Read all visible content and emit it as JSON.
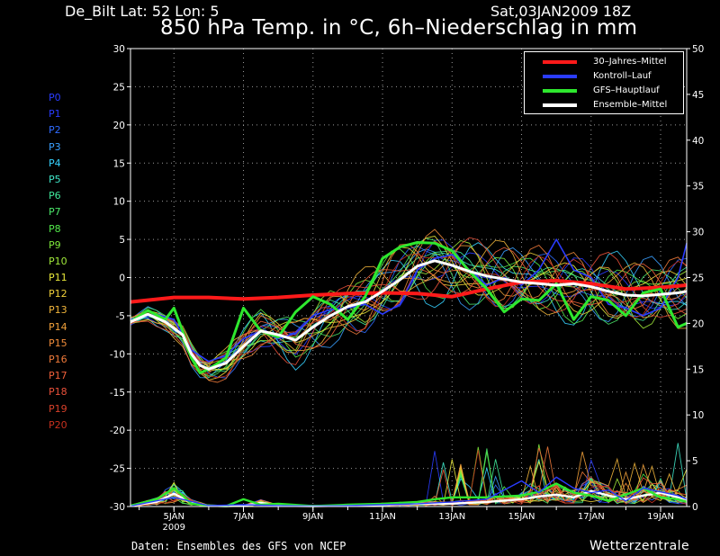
{
  "header": {
    "location": "De_Bilt   Lat: 52 Lon: 5",
    "run": "Sat,03JAN2009 18Z",
    "title": "850 hPa Temp. in °C, 6h–Niederschlag in mm"
  },
  "footer": {
    "source": "Daten: Ensembles des GFS von NCEP",
    "brand": "Wetterzentrale"
  },
  "members": [
    {
      "label": "P0",
      "color": "#2a3cff"
    },
    {
      "label": "P1",
      "color": "#2a3cff"
    },
    {
      "label": "P2",
      "color": "#2f6bff"
    },
    {
      "label": "P3",
      "color": "#3aa0ff"
    },
    {
      "label": "P4",
      "color": "#36d2ff"
    },
    {
      "label": "P5",
      "color": "#3fe6c8"
    },
    {
      "label": "P6",
      "color": "#3fe89a"
    },
    {
      "label": "P7",
      "color": "#4be86a"
    },
    {
      "label": "P8",
      "color": "#52e84a"
    },
    {
      "label": "P9",
      "color": "#7de83a"
    },
    {
      "label": "P10",
      "color": "#a0e83a"
    },
    {
      "label": "P11",
      "color": "#e8e83a"
    },
    {
      "label": "P12",
      "color": "#f0d03a"
    },
    {
      "label": "P13",
      "color": "#f0b43a"
    },
    {
      "label": "P14",
      "color": "#f0a03a"
    },
    {
      "label": "P15",
      "color": "#f08c3a"
    },
    {
      "label": "P16",
      "color": "#f07a3a"
    },
    {
      "label": "P17",
      "color": "#f0603a"
    },
    {
      "label": "P18",
      "color": "#e8503a"
    },
    {
      "label": "P19",
      "color": "#d8402a"
    },
    {
      "label": "P20",
      "color": "#c8301e"
    }
  ],
  "chart_data": {
    "type": "line",
    "x_unit": "day of January 2009",
    "xlim": [
      3.75,
      19.75
    ],
    "xticks": [
      {
        "x": 5,
        "label": "5JAN",
        "sub": "2009"
      },
      {
        "x": 7,
        "label": "7JAN",
        "sub": ""
      },
      {
        "x": 9,
        "label": "9JAN",
        "sub": ""
      },
      {
        "x": 11,
        "label": "11JAN",
        "sub": ""
      },
      {
        "x": 13,
        "label": "13JAN",
        "sub": ""
      },
      {
        "x": 15,
        "label": "15JAN",
        "sub": ""
      },
      {
        "x": 17,
        "label": "17JAN",
        "sub": ""
      },
      {
        "x": 19,
        "label": "19JAN",
        "sub": ""
      }
    ],
    "ylim_left": [
      -30,
      30
    ],
    "yticks_left": [
      -30,
      -25,
      -20,
      -15,
      -10,
      -5,
      0,
      5,
      10,
      15,
      20,
      25,
      30
    ],
    "ylim_right": [
      0,
      50
    ],
    "yticks_right": [
      0,
      5,
      10,
      15,
      20,
      25,
      30,
      35,
      40,
      45,
      50
    ],
    "grid": true,
    "legend": {
      "position": "top-right",
      "items": [
        {
          "name": "30–Jahres–Mittel",
          "color": "#ff1a1a"
        },
        {
          "name": "Kontroll–Lauf",
          "color": "#2a3cff"
        },
        {
          "name": "GFS–Hauptlauf",
          "color": "#2ee82e"
        },
        {
          "name": "Ensemble–Mittel",
          "color": "#ffffff"
        }
      ]
    },
    "temperature_series": [
      {
        "name": "30–Jahres–Mittel",
        "color": "#ff1a1a",
        "width": 4,
        "x": [
          3.75,
          5,
          6,
          7,
          8,
          9,
          10,
          11,
          12,
          13,
          14,
          15,
          16,
          17,
          18,
          19,
          19.75
        ],
        "y": [
          -3.2,
          -2.6,
          -2.6,
          -2.8,
          -2.6,
          -2.3,
          -2.1,
          -2.0,
          -2.1,
          -2.5,
          -1.5,
          -0.6,
          -0.4,
          -0.8,
          -1.5,
          -1.3,
          -1.0
        ]
      },
      {
        "name": "Ensemble–Mittel",
        "color": "#ffffff",
        "width": 3,
        "x": [
          3.75,
          4.25,
          4.75,
          5.25,
          5.5,
          5.75,
          6,
          6.5,
          7,
          7.5,
          8,
          8.5,
          9,
          9.5,
          10,
          10.5,
          11,
          11.5,
          12,
          12.5,
          13,
          13.5,
          14,
          14.5,
          15,
          15.5,
          16,
          16.5,
          17,
          17.5,
          18,
          18.5,
          19,
          19.5,
          19.75
        ],
        "y": [
          -5.8,
          -4.8,
          -5.8,
          -7.5,
          -10,
          -11.5,
          -12,
          -11.2,
          -9,
          -7,
          -7.5,
          -8.2,
          -6.5,
          -5,
          -3.8,
          -3.2,
          -1.8,
          -0.3,
          1.5,
          2.2,
          1.6,
          0.8,
          0.2,
          -0.2,
          -0.6,
          -0.8,
          -1.0,
          -0.8,
          -1.2,
          -1.8,
          -2.3,
          -2.4,
          -2.2,
          -2.0,
          -1.8
        ]
      },
      {
        "name": "GFS–Hauptlauf",
        "color": "#2ee82e",
        "width": 3,
        "x": [
          3.75,
          4.25,
          4.75,
          5,
          5.25,
          5.5,
          5.75,
          6,
          6.5,
          7,
          7.5,
          8,
          8.5,
          9,
          9.5,
          10,
          10.5,
          11,
          11.5,
          12,
          12.5,
          13,
          13.5,
          14,
          14.5,
          15,
          15.5,
          16,
          16.5,
          17,
          17.5,
          18,
          18.5,
          19,
          19.5,
          19.75
        ],
        "y": [
          -5.8,
          -4.3,
          -5.5,
          -4,
          -7,
          -10.5,
          -12.5,
          -12,
          -10.5,
          -4,
          -7,
          -7.8,
          -4.5,
          -2.5,
          -3.5,
          -5.5,
          -2.5,
          2.5,
          4,
          4.6,
          4.5,
          3.5,
          0.8,
          -1.5,
          -4.5,
          -2.8,
          -3,
          -0.8,
          -5.5,
          -2.5,
          -3,
          -5,
          -2,
          -1.5,
          -6.5,
          -6
        ]
      },
      {
        "name": "Kontroll–Lauf",
        "color": "#2a3cff",
        "width": 1.6,
        "x": [
          3.75,
          4.5,
          5,
          5.5,
          6,
          6.5,
          7,
          7.5,
          8,
          8.5,
          9,
          9.5,
          10,
          10.5,
          11,
          11.5,
          12,
          12.5,
          13,
          13.5,
          14,
          14.5,
          15,
          15.5,
          16,
          16.5,
          17,
          17.5,
          18,
          18.5,
          19,
          19.5,
          19.75
        ],
        "y": [
          -5.5,
          -4.8,
          -5.5,
          -9.5,
          -11,
          -10.2,
          -8,
          -7,
          -8,
          -7.3,
          -5,
          -4.2,
          -4,
          -3.5,
          -4.8,
          -3.5,
          1,
          2.5,
          3,
          1,
          -1,
          0,
          -1,
          1,
          5,
          1,
          0,
          -3.5,
          -4,
          -5,
          -4,
          0,
          4.5
        ]
      }
    ],
    "precip_series": [
      {
        "name": "Ensemble–Mittel",
        "color": "#ffffff",
        "width": 2.4,
        "x": [
          3.75,
          4.5,
          5,
          5.25,
          5.5,
          6,
          6.5,
          7,
          7.5,
          8,
          9,
          10,
          11,
          12,
          13,
          14,
          15,
          15.5,
          16,
          16.5,
          17,
          17.5,
          18,
          18.5,
          19,
          19.5,
          19.75
        ],
        "y": [
          0.1,
          0.5,
          1.4,
          0.9,
          0.4,
          0.1,
          0.05,
          0.1,
          0.4,
          0.1,
          0.05,
          0.1,
          0.2,
          0.3,
          0.3,
          0.5,
          0.8,
          1.1,
          1.3,
          1.0,
          1.7,
          1.2,
          0.8,
          1.2,
          1.5,
          1.0,
          0.8
        ]
      },
      {
        "name": "GFS–Hauptlauf",
        "color": "#2ee82e",
        "width": 2.4,
        "x": [
          3.75,
          4.5,
          5,
          5.25,
          5.5,
          6,
          6.5,
          7,
          7.5,
          8,
          9,
          10,
          11,
          12,
          12.5,
          13,
          14,
          15,
          15.5,
          16,
          16.5,
          17,
          17.5,
          18,
          18.5,
          19,
          19.5,
          19.75
        ],
        "y": [
          0.1,
          0.8,
          2.0,
          1.2,
          0.3,
          0.1,
          0.05,
          0.8,
          0.2,
          0.3,
          0.05,
          0.2,
          0.3,
          0.5,
          0.8,
          1.0,
          1.0,
          1.2,
          1.6,
          2.5,
          1.5,
          1.2,
          0.6,
          1.3,
          2.0,
          1.0,
          0.8,
          0.5
        ]
      },
      {
        "name": "Kontroll–Lauf",
        "color": "#2a3cff",
        "width": 1.4,
        "x": [
          3.75,
          5,
          6,
          7,
          8,
          9,
          10,
          11,
          12,
          13,
          14,
          15,
          15.5,
          16,
          16.5,
          17,
          17.5,
          18,
          18.5,
          19,
          19.5,
          19.75
        ],
        "y": [
          0.05,
          1.0,
          0.1,
          0.2,
          0.1,
          0.05,
          0.1,
          0.2,
          0.3,
          0.5,
          0.8,
          2.8,
          1.5,
          3.2,
          2.0,
          1.5,
          1.8,
          0.6,
          2.0,
          1.6,
          1.2,
          0.8
        ]
      }
    ]
  }
}
